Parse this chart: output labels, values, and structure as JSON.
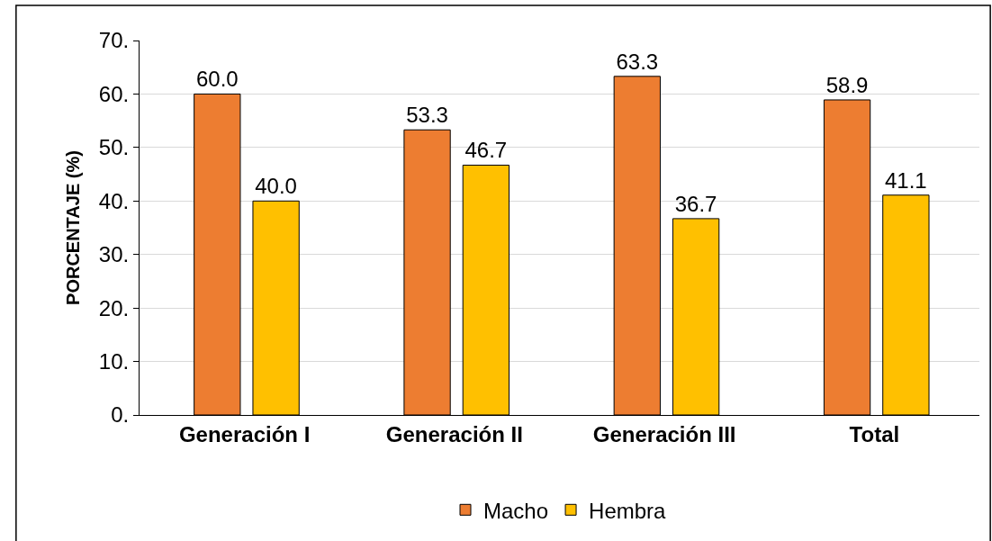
{
  "chart_data": {
    "type": "bar",
    "ylabel": "PORCENTAJE (%)",
    "categories": [
      "Generación I",
      "Generación II",
      "Generación III",
      "Total"
    ],
    "series": [
      {
        "name": "Macho",
        "color": "#ed7d31",
        "values": [
          60.0,
          53.3,
          63.3,
          58.9
        ],
        "value_labels": [
          "60.0",
          "53.3",
          "63.3",
          "58.9"
        ]
      },
      {
        "name": "Hembra",
        "color": "#ffc000",
        "values": [
          40.0,
          46.7,
          36.7,
          41.1
        ],
        "value_labels": [
          "40.0",
          "46.7",
          "36.7",
          "41.1"
        ]
      }
    ],
    "ylim": [
      0,
      70
    ],
    "yticks": [
      {
        "value": 0,
        "label": "0."
      },
      {
        "value": 10,
        "label": "10."
      },
      {
        "value": 20,
        "label": "20."
      },
      {
        "value": 30,
        "label": "30."
      },
      {
        "value": 40,
        "label": "40."
      },
      {
        "value": 50,
        "label": "50."
      },
      {
        "value": 60,
        "label": "60."
      },
      {
        "value": 70,
        "label": "70."
      }
    ],
    "grid": "y",
    "legend": "bottom"
  }
}
